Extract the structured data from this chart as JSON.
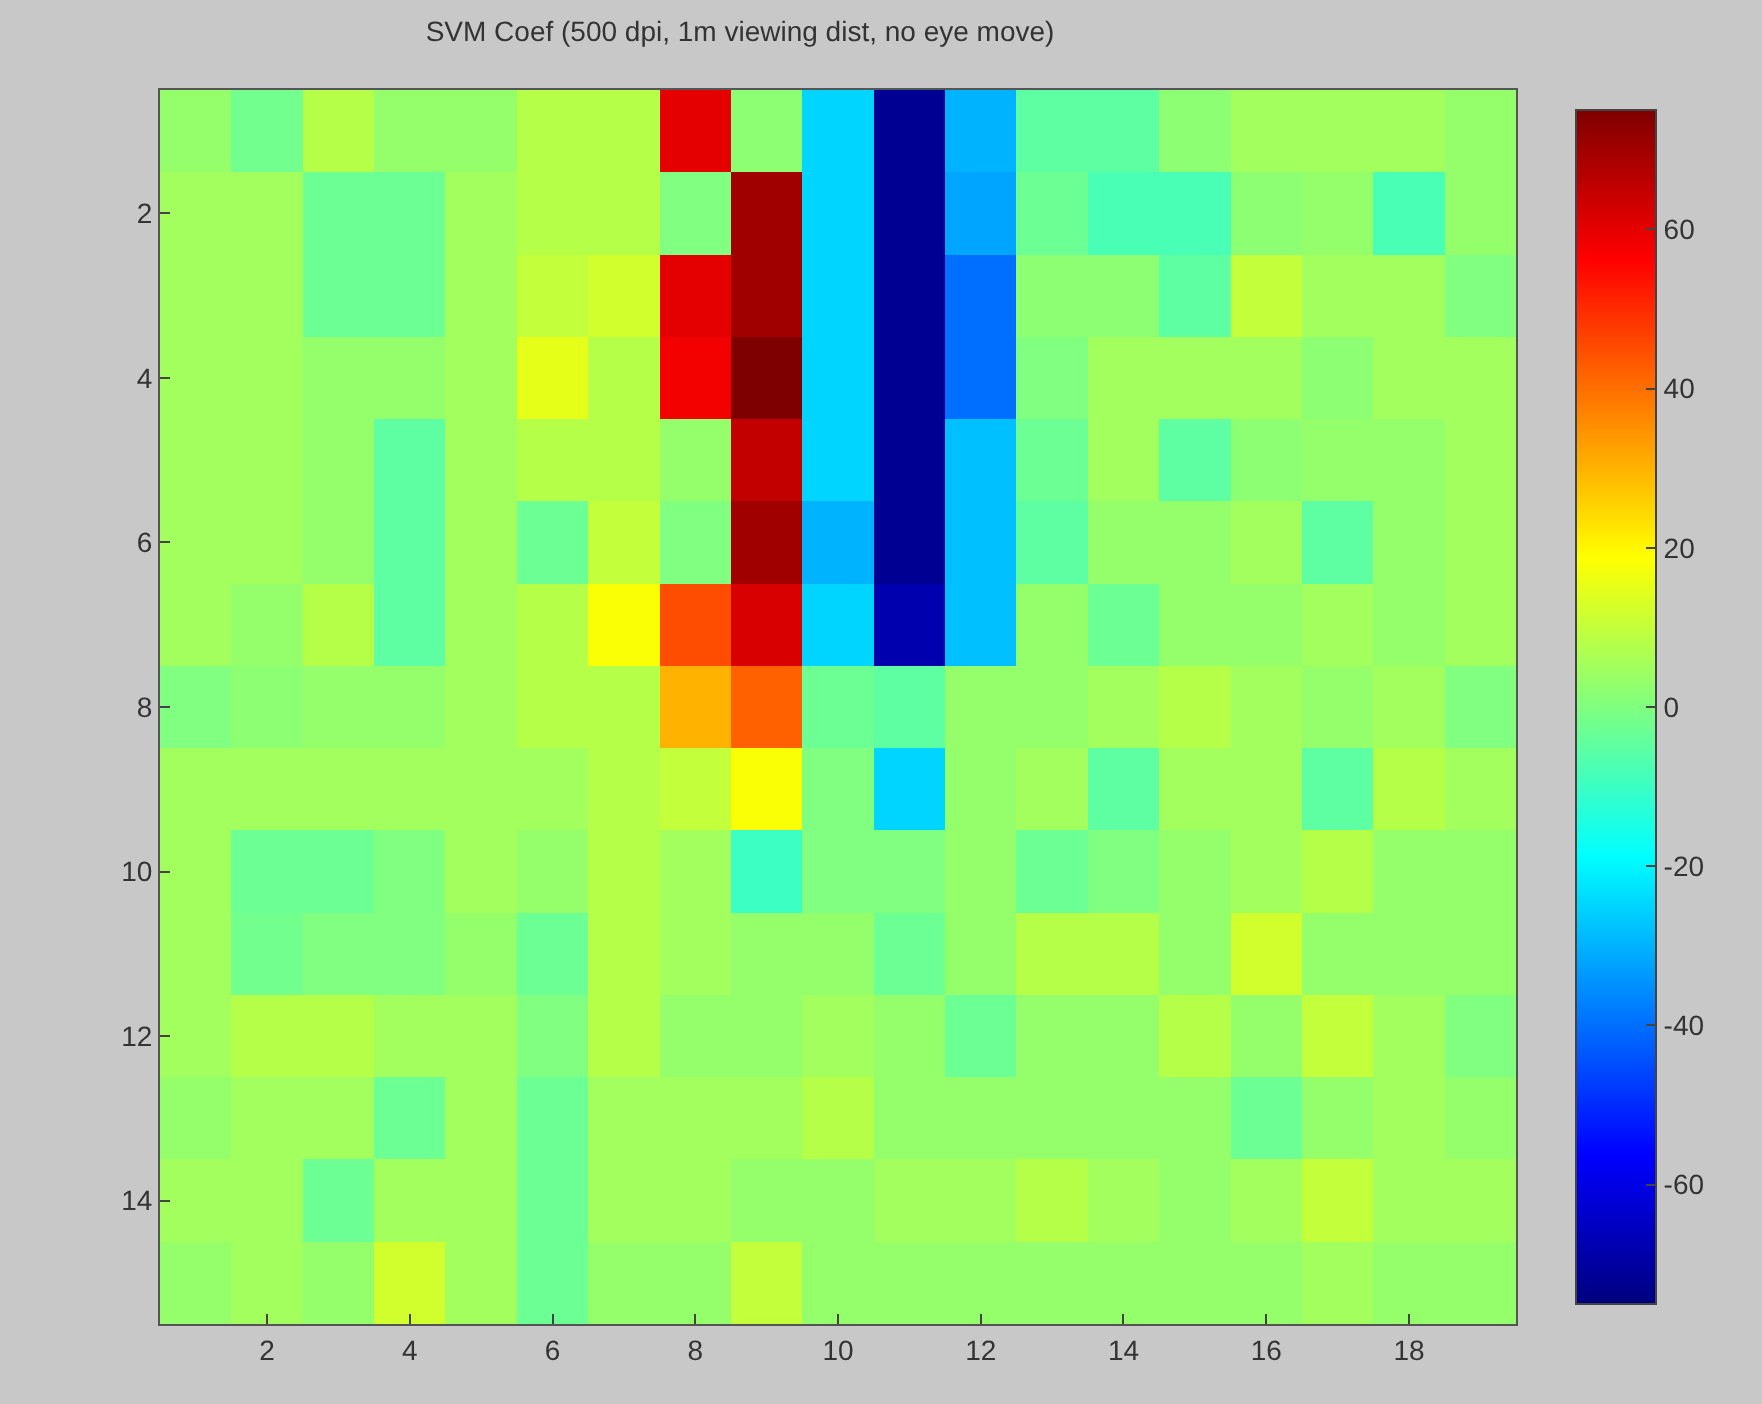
{
  "chart_data": {
    "type": "heatmap",
    "title": "SVM Coef (500 dpi, 1m viewing dist, no eye move)",
    "categories": [
      null,
      "2",
      null,
      "4",
      null,
      "6",
      null,
      "8",
      null,
      "10",
      null,
      "12",
      null,
      "14",
      null,
      "16",
      null,
      "18",
      null
    ],
    "y_categories": [
      null,
      "2",
      null,
      "4",
      null,
      "6",
      null,
      "8",
      null,
      "10",
      null,
      "12",
      null,
      "14",
      null
    ],
    "clim": [
      -75,
      75
    ],
    "cticks": [
      -60,
      -40,
      -20,
      0,
      20,
      40,
      60
    ],
    "cells": [
      [
        3,
        -2,
        8,
        3,
        3,
        8,
        8,
        60,
        2,
        -25,
        -72,
        -30,
        -5,
        -5,
        2,
        5,
        5,
        5,
        3
      ],
      [
        5,
        5,
        -3,
        -3,
        5,
        8,
        8,
        0,
        70,
        -25,
        -72,
        -32,
        -3,
        -8,
        -8,
        2,
        3,
        -8,
        3
      ],
      [
        5,
        5,
        -3,
        -3,
        5,
        10,
        12,
        60,
        70,
        -25,
        -72,
        -40,
        2,
        2,
        -5,
        10,
        5,
        5,
        0
      ],
      [
        5,
        5,
        3,
        3,
        5,
        15,
        8,
        58,
        75,
        -25,
        -72,
        -40,
        0,
        5,
        5,
        5,
        2,
        5,
        5
      ],
      [
        5,
        5,
        3,
        -5,
        5,
        8,
        8,
        3,
        65,
        -25,
        -72,
        -28,
        -3,
        5,
        -5,
        2,
        3,
        3,
        5
      ],
      [
        5,
        5,
        3,
        -5,
        5,
        -3,
        10,
        0,
        70,
        -30,
        -72,
        -28,
        -5,
        3,
        3,
        5,
        -5,
        3,
        5
      ],
      [
        5,
        3,
        8,
        -5,
        5,
        8,
        18,
        45,
        62,
        -25,
        -68,
        -28,
        3,
        -3,
        3,
        3,
        5,
        3,
        5
      ],
      [
        0,
        2,
        3,
        3,
        5,
        8,
        8,
        30,
        42,
        -3,
        -5,
        3,
        3,
        5,
        8,
        5,
        3,
        5,
        0
      ],
      [
        5,
        5,
        5,
        5,
        5,
        5,
        8,
        10,
        18,
        0,
        -25,
        3,
        5,
        -5,
        5,
        5,
        -5,
        8,
        5
      ],
      [
        5,
        -3,
        -3,
        0,
        5,
        3,
        8,
        5,
        -10,
        0,
        0,
        3,
        -3,
        0,
        3,
        5,
        8,
        3,
        3
      ],
      [
        5,
        -2,
        0,
        0,
        3,
        -3,
        8,
        5,
        3,
        3,
        -3,
        3,
        8,
        8,
        3,
        12,
        3,
        3,
        3
      ],
      [
        5,
        8,
        8,
        5,
        5,
        0,
        8,
        3,
        3,
        5,
        3,
        -3,
        3,
        3,
        8,
        3,
        10,
        5,
        0
      ],
      [
        3,
        5,
        5,
        -3,
        5,
        -3,
        5,
        5,
        5,
        8,
        3,
        3,
        3,
        3,
        3,
        -3,
        3,
        5,
        3
      ],
      [
        5,
        5,
        -3,
        5,
        5,
        -3,
        5,
        5,
        3,
        3,
        5,
        5,
        8,
        5,
        3,
        5,
        10,
        5,
        5
      ],
      [
        3,
        5,
        3,
        12,
        5,
        -3,
        3,
        3,
        10,
        3,
        3,
        3,
        3,
        3,
        3,
        3,
        5,
        3,
        3
      ]
    ]
  }
}
